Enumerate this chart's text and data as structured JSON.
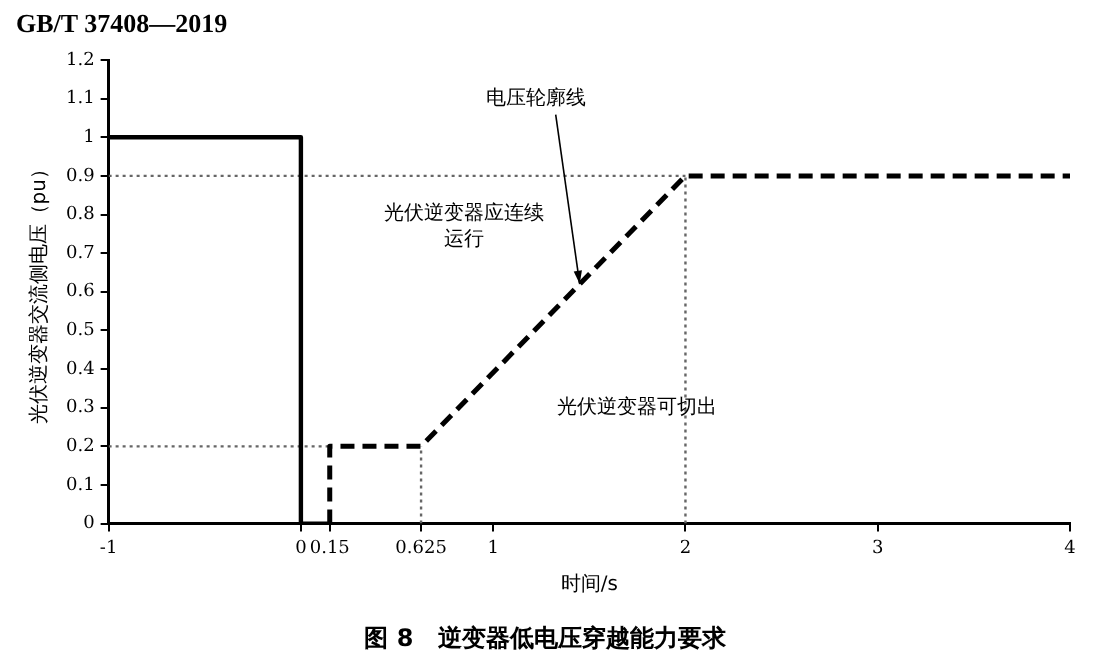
{
  "chart_data": {
    "type": "line",
    "title": "图 8　逆变器低电压穿越能力要求",
    "xlabel": "时间/s",
    "ylabel": "光伏逆变器交流侧电压（pu）",
    "series": [
      {
        "color": "#000000",
        "line_style": "solid",
        "x": [
          -1,
          0,
          0,
          0.15
        ],
        "values": [
          1,
          1,
          0,
          0
        ]
      },
      {
        "color": "#000000",
        "line_style": "dashed",
        "x": [
          0.15,
          0.15,
          0.625,
          2,
          4
        ],
        "values": [
          0,
          0.2,
          0.2,
          0.9,
          0.9
        ]
      },
      {
        "color": "#666666",
        "line_style": "dotted",
        "x": [
          -1,
          2
        ],
        "values": [
          0.9,
          0.9
        ]
      },
      {
        "color": "#666666",
        "line_style": "dotted",
        "x": [
          -1,
          0.15
        ],
        "values": [
          0.2,
          0.2
        ]
      },
      {
        "color": "#666666",
        "line_style": "dotted",
        "x": [
          0.625,
          0.625
        ],
        "values": [
          0,
          0.2
        ]
      },
      {
        "color": "#666666",
        "line_style": "dotted",
        "x": [
          2,
          2
        ],
        "values": [
          0,
          0.9
        ]
      }
    ],
    "xlim": [
      -1,
      4
    ],
    "xticks": [
      -1,
      0,
      0.15,
      0.625,
      1,
      2,
      3,
      4
    ],
    "ylim": [
      0,
      1.2
    ],
    "yticks": [
      0,
      0.1,
      0.2,
      0.3,
      0.4,
      0.5,
      0.6,
      0.7,
      0.8,
      0.9,
      1,
      1.1,
      1.2
    ],
    "grid": false,
    "legend": false,
    "marker": "none",
    "annotations": [
      "GB/T 37408—2019",
      {
        "text": "电压轮廓线",
        "x": 1.45,
        "y": 0.62
      },
      "光伏逆变器应连续运行",
      "光伏逆变器可切出"
    ]
  }
}
